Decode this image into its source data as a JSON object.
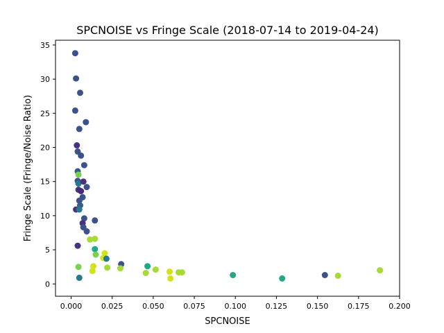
{
  "chart_data": {
    "type": "scatter",
    "title": "SPCNOISE vs Fringe Scale (2018-07-14 to 2019-04-24)",
    "xlabel": "SPCNOISE",
    "ylabel": "Fringe Scale (Fringe/Noise Ratio)",
    "xlim": [
      -0.0095,
      0.2
    ],
    "ylim": [
      -1.8,
      35.7
    ],
    "xticks": [
      0.0,
      0.025,
      0.05,
      0.075,
      0.1,
      0.125,
      0.15,
      0.175,
      0.2
    ],
    "xtick_labels": [
      "0.000",
      "0.025",
      "0.050",
      "0.075",
      "0.100",
      "0.125",
      "0.150",
      "0.175",
      "0.200"
    ],
    "yticks": [
      0,
      5,
      10,
      15,
      20,
      25,
      30,
      35
    ],
    "ytick_labels": [
      "0",
      "5",
      "10",
      "15",
      "20",
      "25",
      "30",
      "35"
    ],
    "grid": false,
    "points": [
      {
        "x": 0.0025,
        "y": 33.8,
        "c": "#3b528b"
      },
      {
        "x": 0.003,
        "y": 30.1,
        "c": "#3b528b"
      },
      {
        "x": 0.0055,
        "y": 28.0,
        "c": "#3b528b"
      },
      {
        "x": 0.0025,
        "y": 25.4,
        "c": "#3b528b"
      },
      {
        "x": 0.009,
        "y": 23.7,
        "c": "#3b528b"
      },
      {
        "x": 0.005,
        "y": 22.7,
        "c": "#3b528b"
      },
      {
        "x": 0.0035,
        "y": 20.3,
        "c": "#46327e"
      },
      {
        "x": 0.004,
        "y": 19.4,
        "c": "#3b528b"
      },
      {
        "x": 0.006,
        "y": 18.8,
        "c": "#3b528b"
      },
      {
        "x": 0.008,
        "y": 17.4,
        "c": "#3b528b"
      },
      {
        "x": 0.004,
        "y": 16.5,
        "c": "#365c8d"
      },
      {
        "x": 0.0045,
        "y": 16.0,
        "c": "#7ad151"
      },
      {
        "x": 0.004,
        "y": 15.1,
        "c": "#3b528b"
      },
      {
        "x": 0.0045,
        "y": 14.7,
        "c": "#2a788e"
      },
      {
        "x": 0.0075,
        "y": 15.0,
        "c": "#46327e"
      },
      {
        "x": 0.0095,
        "y": 14.2,
        "c": "#3b528b"
      },
      {
        "x": 0.0045,
        "y": 13.8,
        "c": "#46327e"
      },
      {
        "x": 0.006,
        "y": 13.6,
        "c": "#482878"
      },
      {
        "x": 0.007,
        "y": 12.7,
        "c": "#3b528b"
      },
      {
        "x": 0.005,
        "y": 12.2,
        "c": "#3b528b"
      },
      {
        "x": 0.0055,
        "y": 11.5,
        "c": "#365c8d"
      },
      {
        "x": 0.003,
        "y": 10.9,
        "c": "#46327e"
      },
      {
        "x": 0.005,
        "y": 10.9,
        "c": "#2a788e"
      },
      {
        "x": 0.008,
        "y": 9.6,
        "c": "#3b528b"
      },
      {
        "x": 0.0145,
        "y": 9.3,
        "c": "#3b528b"
      },
      {
        "x": 0.007,
        "y": 8.9,
        "c": "#46327e"
      },
      {
        "x": 0.0075,
        "y": 8.3,
        "c": "#3b528b"
      },
      {
        "x": 0.0095,
        "y": 7.7,
        "c": "#3b528b"
      },
      {
        "x": 0.0115,
        "y": 6.5,
        "c": "#a5db36"
      },
      {
        "x": 0.0145,
        "y": 6.6,
        "c": "#a5db36"
      },
      {
        "x": 0.004,
        "y": 5.6,
        "c": "#46327e"
      },
      {
        "x": 0.0145,
        "y": 5.1,
        "c": "#22a884"
      },
      {
        "x": 0.0205,
        "y": 4.5,
        "c": "#d2e21b"
      },
      {
        "x": 0.015,
        "y": 4.3,
        "c": "#7ad151"
      },
      {
        "x": 0.0195,
        "y": 3.8,
        "c": "#d2e21b"
      },
      {
        "x": 0.0215,
        "y": 3.7,
        "c": "#2a788e"
      },
      {
        "x": 0.0305,
        "y": 2.9,
        "c": "#3b528b"
      },
      {
        "x": 0.0045,
        "y": 2.5,
        "c": "#7ad151"
      },
      {
        "x": 0.0135,
        "y": 2.6,
        "c": "#d2e21b"
      },
      {
        "x": 0.022,
        "y": 2.4,
        "c": "#a5db36"
      },
      {
        "x": 0.03,
        "y": 2.3,
        "c": "#a5db36"
      },
      {
        "x": 0.0465,
        "y": 2.6,
        "c": "#22a884"
      },
      {
        "x": 0.013,
        "y": 1.9,
        "c": "#d2e21b"
      },
      {
        "x": 0.0515,
        "y": 2.1,
        "c": "#a5db36"
      },
      {
        "x": 0.0455,
        "y": 1.6,
        "c": "#a5db36"
      },
      {
        "x": 0.06,
        "y": 1.8,
        "c": "#d2e21b"
      },
      {
        "x": 0.0655,
        "y": 1.7,
        "c": "#a5db36"
      },
      {
        "x": 0.0675,
        "y": 1.7,
        "c": "#a5db36"
      },
      {
        "x": 0.0605,
        "y": 0.8,
        "c": "#d2e21b"
      },
      {
        "x": 0.005,
        "y": 0.9,
        "c": "#2a788e"
      },
      {
        "x": 0.0985,
        "y": 1.3,
        "c": "#22a884"
      },
      {
        "x": 0.1285,
        "y": 0.8,
        "c": "#22a884"
      },
      {
        "x": 0.1545,
        "y": 1.3,
        "c": "#3b528b"
      },
      {
        "x": 0.1625,
        "y": 1.2,
        "c": "#a5db36"
      },
      {
        "x": 0.188,
        "y": 2.0,
        "c": "#a5db36"
      }
    ]
  }
}
